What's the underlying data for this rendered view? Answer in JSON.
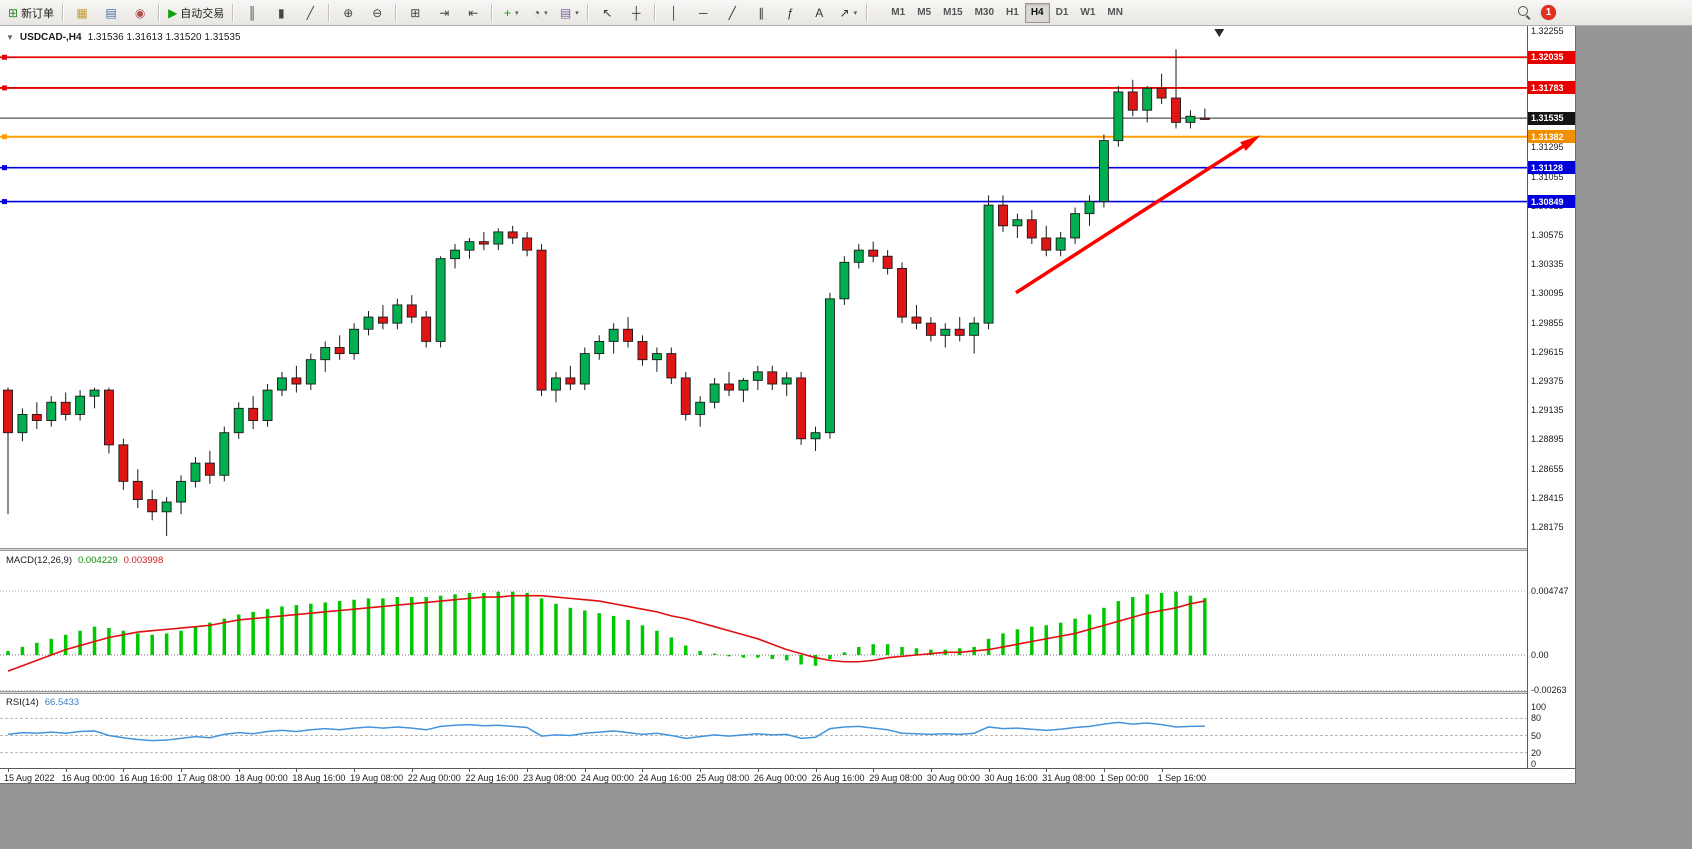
{
  "toolbar": {
    "dropdown_glyph": "▾",
    "notification_count": "1",
    "buttons": [
      {
        "name": "new-order-button",
        "icon": "new-order-icon",
        "glyph": "⊞",
        "color": "#2e8b2e",
        "label": "新订单",
        "sep": true
      },
      {
        "name": "chart-wizard-button",
        "icon": "chart-wizard-icon",
        "glyph": "▦",
        "color": "#c09a30"
      },
      {
        "name": "profiles-button",
        "icon": "profiles-icon",
        "glyph": "▤",
        "color": "#4a6da7"
      },
      {
        "name": "alerts-button",
        "icon": "alerts-icon",
        "glyph": "◉",
        "color": "#b05050",
        "sep": true
      },
      {
        "name": "autotrading-button",
        "icon": "autotrading-play-icon",
        "glyph": "▶",
        "color": "#0aa10a",
        "label": "自动交易",
        "sep": true
      },
      {
        "name": "bar-chart-button",
        "icon": "bar-chart-icon",
        "glyph": "║",
        "color": "#444444"
      },
      {
        "name": "candlestick-button",
        "icon": "candlestick-icon",
        "glyph": "▮",
        "color": "#444444"
      },
      {
        "name": "line-chart-button",
        "icon": "line-chart-icon",
        "glyph": "╱",
        "color": "#444444",
        "sep": true
      },
      {
        "name": "zoom-in-button",
        "icon": "zoom-in-icon",
        "glyph": "⊕",
        "color": "#444444"
      },
      {
        "name": "zoom-out-button",
        "icon": "zoom-out-icon",
        "glyph": "⊖",
        "color": "#444444",
        "sep": true
      },
      {
        "name": "tile-windows-button",
        "icon": "tile-windows-icon",
        "glyph": "⊞",
        "color": "#444444"
      },
      {
        "name": "auto-scroll-button",
        "icon": "auto-scroll-icon",
        "glyph": "⇥",
        "color": "#444444"
      },
      {
        "name": "chart-shift-button",
        "icon": "chart-shift-icon",
        "glyph": "⇤",
        "color": "#444444",
        "sep": true
      },
      {
        "name": "indicators-button",
        "icon": "indicators-plus-icon",
        "glyph": "+",
        "color": "#0aa10a",
        "dropdown": true
      },
      {
        "name": "periods-button",
        "icon": "clock-icon",
        "glyph": "◔",
        "color": "#444444",
        "dropdown": true
      },
      {
        "name": "templates-button",
        "icon": "templates-icon",
        "glyph": "▤",
        "color": "#7a5fa0",
        "dropdown": true,
        "sep": true
      },
      {
        "name": "cursor-button",
        "icon": "cursor-icon",
        "glyph": "↖",
        "color": "#333333"
      },
      {
        "name": "crosshair-button",
        "icon": "crosshair-icon",
        "glyph": "┼",
        "color": "#333333",
        "sep": true
      },
      {
        "name": "vertical-line-button",
        "icon": "vertical-line-icon",
        "glyph": "│",
        "color": "#333333"
      },
      {
        "name": "horizontal-line-button",
        "icon": "horizontal-line-icon",
        "glyph": "─",
        "color": "#333333"
      },
      {
        "name": "trendline-button",
        "icon": "trendline-icon",
        "glyph": "╱",
        "color": "#333333"
      },
      {
        "name": "channel-button",
        "icon": "channel-icon",
        "glyph": "∥",
        "color": "#333333"
      },
      {
        "name": "fibonacci-button",
        "icon": "fibonacci-icon",
        "glyph": "ƒ",
        "color": "#333333"
      },
      {
        "name": "text-button",
        "icon": "text-icon",
        "glyph": "A",
        "color": "#333333"
      },
      {
        "name": "arrows-button",
        "icon": "arrow-tools-icon",
        "glyph": "↗",
        "color": "#333333",
        "dropdown": true,
        "sep": true
      }
    ],
    "timeframes": [
      "M1",
      "M5",
      "M15",
      "M30",
      "H1",
      "H4",
      "D1",
      "W1",
      "MN"
    ],
    "active_timeframe": "H4"
  },
  "chart": {
    "collapse_icon": "▼",
    "title": "USDCAD-,H4",
    "ohlc_text": "1.31536 1.31613 1.31520 1.31535"
  },
  "macd_panel": {
    "label": "MACD(12,26,9)",
    "main_value": "0.004229",
    "signal_value": "0.003998"
  },
  "rsi_panel": {
    "label": "RSI(14)",
    "value": "66.5433"
  },
  "chart_data": {
    "type": "candlestick",
    "symbol": "USDCAD",
    "timeframe": "H4",
    "up_color": "#00B050",
    "down_color": "#E01616",
    "current_bar": {
      "open": 1.31536,
      "high": 1.31613,
      "low": 1.3152,
      "close": 1.31535
    },
    "shift_marker_bar": 84,
    "price_axis": {
      "max": 1.32255,
      "min": 1.28175,
      "labels": [
        "1.32255",
        "1.31295",
        "1.31055",
        "1.30815",
        "1.30575",
        "1.30335",
        "1.30095",
        "1.29855",
        "1.29615",
        "1.29375",
        "1.29135",
        "1.28895",
        "1.28655",
        "1.28415",
        "1.28175"
      ]
    },
    "hlines": [
      {
        "price": 1.32035,
        "color": "#E80000",
        "width": 1.8
      },
      {
        "price": 1.31783,
        "color": "#E80000",
        "width": 1.8
      },
      {
        "price": 1.31382,
        "color": "#FFA000",
        "width": 2
      },
      {
        "price": 1.31128,
        "color": "#0000E0",
        "width": 1.6
      },
      {
        "price": 1.30849,
        "color": "#0000E0",
        "width": 1.6
      }
    ],
    "price_tags": [
      {
        "text": "1.32035",
        "price": 1.32035,
        "color": "#E80000"
      },
      {
        "text": "1.31783",
        "price": 1.31783,
        "color": "#E80000"
      },
      {
        "text": "1.31535",
        "price": 1.31535,
        "color": "#141414"
      },
      {
        "text": "1.31382",
        "price": 1.31382,
        "color": "#F09000"
      },
      {
        "text": "1.31128",
        "price": 1.31128,
        "color": "#0000D8"
      },
      {
        "text": "1.30849",
        "price": 1.30849,
        "color": "#0000D8"
      }
    ],
    "current_price_line": {
      "price": 1.31535,
      "color": "#2b2b2b"
    },
    "trend_arrow": {
      "from_bar": 69.9,
      "from_price": 1.301,
      "to_bar": 86.4,
      "to_price": 1.3136,
      "color": "#FF0000"
    },
    "time_labels": [
      "15 Aug 2022",
      "16 Aug 00:00",
      "16 Aug 16:00",
      "17 Aug 08:00",
      "18 Aug 00:00",
      "18 Aug 16:00",
      "19 Aug 08:00",
      "22 Aug 00:00",
      "22 Aug 16:00",
      "23 Aug 08:00",
      "24 Aug 00:00",
      "24 Aug 16:00",
      "25 Aug 08:00",
      "26 Aug 00:00",
      "26 Aug 16:00",
      "29 Aug 08:00",
      "30 Aug 00:00",
      "30 Aug 16:00",
      "31 Aug 08:00",
      "1 Sep 00:00",
      "1 Sep 16:00"
    ],
    "label_step": 4,
    "candles": [
      [
        1.293,
        1.2932,
        1.2828,
        1.2895
      ],
      [
        1.2895,
        1.2915,
        1.2888,
        1.291
      ],
      [
        1.291,
        1.292,
        1.2898,
        1.2905
      ],
      [
        1.2905,
        1.2925,
        1.29,
        1.292
      ],
      [
        1.292,
        1.2928,
        1.2905,
        1.291
      ],
      [
        1.291,
        1.293,
        1.2905,
        1.2925
      ],
      [
        1.2925,
        1.2932,
        1.2915,
        1.293
      ],
      [
        1.293,
        1.2932,
        1.2878,
        1.2885
      ],
      [
        1.2885,
        1.289,
        1.2848,
        1.2855
      ],
      [
        1.2855,
        1.2865,
        1.2833,
        1.284
      ],
      [
        1.284,
        1.2848,
        1.2823,
        1.283
      ],
      [
        1.283,
        1.2842,
        1.281,
        1.2838
      ],
      [
        1.2838,
        1.286,
        1.2828,
        1.2855
      ],
      [
        1.2855,
        1.2875,
        1.285,
        1.287
      ],
      [
        1.287,
        1.288,
        1.2853,
        1.286
      ],
      [
        1.286,
        1.29,
        1.2855,
        1.2895
      ],
      [
        1.2895,
        1.292,
        1.289,
        1.2915
      ],
      [
        1.2915,
        1.2925,
        1.2898,
        1.2905
      ],
      [
        1.2905,
        1.2935,
        1.29,
        1.293
      ],
      [
        1.293,
        1.2945,
        1.2925,
        1.294
      ],
      [
        1.294,
        1.295,
        1.2928,
        1.2935
      ],
      [
        1.2935,
        1.296,
        1.293,
        1.2955
      ],
      [
        1.2955,
        1.297,
        1.2945,
        1.2965
      ],
      [
        1.2965,
        1.2975,
        1.2955,
        1.296
      ],
      [
        1.296,
        1.2985,
        1.2955,
        1.298
      ],
      [
        1.298,
        1.2995,
        1.2975,
        1.299
      ],
      [
        1.299,
        1.3,
        1.298,
        1.2985
      ],
      [
        1.2985,
        1.3005,
        1.298,
        1.3
      ],
      [
        1.3,
        1.3008,
        1.2985,
        1.299
      ],
      [
        1.299,
        1.2995,
        1.2965,
        1.297
      ],
      [
        1.297,
        1.304,
        1.2965,
        1.3038
      ],
      [
        1.3038,
        1.305,
        1.303,
        1.3045
      ],
      [
        1.3045,
        1.3055,
        1.3038,
        1.3052
      ],
      [
        1.3052,
        1.306,
        1.3045,
        1.305
      ],
      [
        1.305,
        1.3063,
        1.3045,
        1.306
      ],
      [
        1.306,
        1.3065,
        1.305,
        1.3055
      ],
      [
        1.3055,
        1.306,
        1.304,
        1.3045
      ],
      [
        1.3045,
        1.305,
        1.2925,
        1.293
      ],
      [
        1.293,
        1.2945,
        1.292,
        1.294
      ],
      [
        1.294,
        1.295,
        1.293,
        1.2935
      ],
      [
        1.2935,
        1.2965,
        1.293,
        1.296
      ],
      [
        1.296,
        1.2975,
        1.2955,
        1.297
      ],
      [
        1.297,
        1.2985,
        1.296,
        1.298
      ],
      [
        1.298,
        1.299,
        1.2965,
        1.297
      ],
      [
        1.297,
        1.2975,
        1.295,
        1.2955
      ],
      [
        1.2955,
        1.2965,
        1.2945,
        1.296
      ],
      [
        1.296,
        1.2965,
        1.2935,
        1.294
      ],
      [
        1.294,
        1.2945,
        1.2905,
        1.291
      ],
      [
        1.291,
        1.2925,
        1.29,
        1.292
      ],
      [
        1.292,
        1.294,
        1.2915,
        1.2935
      ],
      [
        1.2935,
        1.2945,
        1.2925,
        1.293
      ],
      [
        1.293,
        1.294,
        1.292,
        1.2938
      ],
      [
        1.2938,
        1.295,
        1.293,
        1.2945
      ],
      [
        1.2945,
        1.295,
        1.293,
        1.2935
      ],
      [
        1.2935,
        1.2945,
        1.2925,
        1.294
      ],
      [
        1.294,
        1.2945,
        1.2885,
        1.289
      ],
      [
        1.289,
        1.29,
        1.288,
        1.2895
      ],
      [
        1.2895,
        1.301,
        1.289,
        1.3005
      ],
      [
        1.3005,
        1.304,
        1.3,
        1.3035
      ],
      [
        1.3035,
        1.305,
        1.303,
        1.3045
      ],
      [
        1.3045,
        1.3052,
        1.3035,
        1.304
      ],
      [
        1.304,
        1.3045,
        1.3025,
        1.303
      ],
      [
        1.303,
        1.3035,
        1.2985,
        1.299
      ],
      [
        1.299,
        1.3,
        1.298,
        1.2985
      ],
      [
        1.2985,
        1.299,
        1.297,
        1.2975
      ],
      [
        1.2975,
        1.2985,
        1.2965,
        1.298
      ],
      [
        1.298,
        1.299,
        1.297,
        1.2975
      ],
      [
        1.2975,
        1.299,
        1.296,
        1.2985
      ],
      [
        1.2985,
        1.309,
        1.298,
        1.3082
      ],
      [
        1.3082,
        1.309,
        1.306,
        1.3065
      ],
      [
        1.3065,
        1.3075,
        1.3055,
        1.307
      ],
      [
        1.307,
        1.3078,
        1.305,
        1.3055
      ],
      [
        1.3055,
        1.3065,
        1.304,
        1.3045
      ],
      [
        1.3045,
        1.306,
        1.304,
        1.3055
      ],
      [
        1.3055,
        1.308,
        1.305,
        1.3075
      ],
      [
        1.3075,
        1.309,
        1.3065,
        1.3085
      ],
      [
        1.3085,
        1.314,
        1.308,
        1.3135
      ],
      [
        1.3135,
        1.318,
        1.313,
        1.3175
      ],
      [
        1.3175,
        1.3185,
        1.3155,
        1.316
      ],
      [
        1.316,
        1.318,
        1.315,
        1.3178
      ],
      [
        1.3178,
        1.319,
        1.3165,
        1.317
      ],
      [
        1.317,
        1.321,
        1.3145,
        1.315
      ],
      [
        1.315,
        1.316,
        1.3145,
        1.3155
      ],
      [
        1.31536,
        1.31613,
        1.3152,
        1.31535
      ]
    ],
    "macd": {
      "max": 0.004747,
      "min": -0.00263,
      "axis_labels": [
        "0.004747",
        "0.00",
        "-0.00263"
      ],
      "histogram_color": "#00C800",
      "signal_color": "#E01010",
      "histogram": [
        0.0003,
        0.0006,
        0.0009,
        0.0012,
        0.0015,
        0.0018,
        0.0021,
        0.002,
        0.0018,
        0.0016,
        0.0015,
        0.0016,
        0.0018,
        0.0021,
        0.0024,
        0.0027,
        0.003,
        0.0032,
        0.0034,
        0.0036,
        0.0037,
        0.0038,
        0.0039,
        0.004,
        0.0041,
        0.0042,
        0.0042,
        0.0043,
        0.0043,
        0.0043,
        0.0044,
        0.0045,
        0.0046,
        0.0046,
        0.0047,
        0.0047,
        0.0046,
        0.0042,
        0.0038,
        0.0035,
        0.0033,
        0.0031,
        0.0029,
        0.0026,
        0.0022,
        0.0018,
        0.0013,
        0.0007,
        0.0003,
        0.0001,
        -0.0001,
        -0.0002,
        -0.0002,
        -0.0003,
        -0.0004,
        -0.0007,
        -0.0008,
        -0.0003,
        0.0002,
        0.0006,
        0.0008,
        0.0008,
        0.0006,
        0.0005,
        0.0004,
        0.0004,
        0.0005,
        0.0006,
        0.0012,
        0.0016,
        0.0019,
        0.0021,
        0.0022,
        0.0024,
        0.0027,
        0.003,
        0.0035,
        0.004,
        0.0043,
        0.0045,
        0.0046,
        0.0047,
        0.0044,
        0.004229
      ],
      "signal": [
        -0.0012,
        -0.0008,
        -0.0004,
        0.0,
        0.0004,
        0.0007,
        0.001,
        0.0013,
        0.0015,
        0.0017,
        0.0018,
        0.0019,
        0.002,
        0.0021,
        0.0022,
        0.0024,
        0.0026,
        0.0027,
        0.0028,
        0.0029,
        0.003,
        0.0031,
        0.0032,
        0.0033,
        0.0034,
        0.0035,
        0.0036,
        0.0037,
        0.0038,
        0.0039,
        0.004,
        0.0041,
        0.0042,
        0.0043,
        0.0043,
        0.0044,
        0.0044,
        0.0044,
        0.0043,
        0.0042,
        0.0041,
        0.004,
        0.0038,
        0.0036,
        0.0034,
        0.0032,
        0.0029,
        0.0027,
        0.0024,
        0.0021,
        0.0018,
        0.0015,
        0.0012,
        0.0008,
        0.0004,
        0.0001,
        -0.0002,
        -0.0004,
        -0.0005,
        -0.0005,
        -0.0004,
        -0.0002,
        -0.0001,
        0.0,
        0.0001,
        0.0002,
        0.0002,
        0.0003,
        0.0004,
        0.0006,
        0.0008,
        0.001,
        0.0012,
        0.0014,
        0.0016,
        0.0019,
        0.0022,
        0.0025,
        0.0028,
        0.0031,
        0.0033,
        0.0035,
        0.0038,
        0.003998
      ]
    },
    "rsi": {
      "levels": [
        80,
        50,
        20
      ],
      "axis_labels": [
        "100",
        "80",
        "50",
        "20",
        "0"
      ],
      "line_color": "#4494DC",
      "values": [
        52,
        55,
        54,
        56,
        54,
        57,
        58,
        50,
        46,
        43,
        41,
        42,
        45,
        48,
        46,
        52,
        55,
        53,
        57,
        59,
        57,
        60,
        62,
        60,
        63,
        65,
        63,
        65,
        63,
        60,
        66,
        68,
        69,
        67,
        68,
        66,
        64,
        49,
        51,
        50,
        54,
        56,
        58,
        55,
        52,
        54,
        50,
        45,
        48,
        51,
        49,
        51,
        53,
        51,
        52,
        45,
        47,
        62,
        65,
        66,
        63,
        60,
        54,
        53,
        52,
        53,
        52,
        54,
        65,
        62,
        63,
        61,
        59,
        61,
        64,
        66,
        70,
        73,
        70,
        72,
        69,
        65,
        66,
        66.5433
      ]
    }
  }
}
